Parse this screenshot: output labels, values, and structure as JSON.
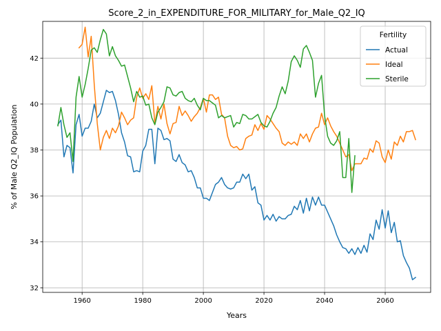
{
  "chart_data": {
    "type": "line",
    "title": "Score_2_in_EXPENDITURE_FOR_MILITARY_for_Male_Q2_IQ",
    "xlabel": "Years",
    "ylabel": "% of Male Q2_IQ Population",
    "xlim": [
      1947,
      2075
    ],
    "ylim": [
      31.8,
      43.6
    ],
    "xticks": [
      1960,
      1980,
      2000,
      2020,
      2040,
      2060
    ],
    "yticks": [
      32,
      34,
      36,
      38,
      40,
      42
    ],
    "grid": true,
    "legend": {
      "title": "Fertility",
      "placement": "top-right"
    },
    "series": [
      {
        "name": "Actual",
        "color": "#1f77b4",
        "x": [
          1952,
          1953,
          1954,
          1955,
          1956,
          1957,
          1958,
          1959,
          1960,
          1961,
          1962,
          1963,
          1964,
          1965,
          1966,
          1967,
          1968,
          1969,
          1970,
          1971,
          1972,
          1973,
          1974,
          1975,
          1976,
          1977,
          1978,
          1979,
          1980,
          1981,
          1982,
          1983,
          1984,
          1985,
          1986,
          1987,
          1988,
          1989,
          1990,
          1991,
          1992,
          1993,
          1994,
          1995,
          1996,
          1997,
          1998,
          1999,
          2000,
          2001,
          2002,
          2003,
          2004,
          2005,
          2006,
          2007,
          2008,
          2009,
          2010,
          2011,
          2012,
          2013,
          2014,
          2015,
          2016,
          2017,
          2018,
          2019,
          2020,
          2021,
          2022,
          2023,
          2024,
          2025,
          2026,
          2027,
          2028,
          2029,
          2030,
          2031,
          2032,
          2033,
          2034,
          2035,
          2036,
          2037,
          2038,
          2039,
          2040,
          2041,
          2042,
          2043,
          2044,
          2045,
          2046,
          2047,
          2048,
          2049,
          2050,
          2051,
          2052,
          2053,
          2054,
          2055,
          2056,
          2057,
          2058,
          2059,
          2060,
          2061,
          2062,
          2063,
          2064,
          2065,
          2066,
          2067,
          2068,
          2069,
          2070
        ],
        "values": [
          39.1,
          39.3,
          37.7,
          38.2,
          38.1,
          37.0,
          39.1,
          39.55,
          38.6,
          38.95,
          38.95,
          39.25,
          40.0,
          39.4,
          39.6,
          40.1,
          40.6,
          40.5,
          40.55,
          40.15,
          39.55,
          38.75,
          38.35,
          37.75,
          37.7,
          37.05,
          37.1,
          37.05,
          37.95,
          38.2,
          38.9,
          38.9,
          37.4,
          38.95,
          38.85,
          38.45,
          38.5,
          38.4,
          37.6,
          37.5,
          37.8,
          37.45,
          37.35,
          37.05,
          37.1,
          36.8,
          36.35,
          36.35,
          35.9,
          35.9,
          35.8,
          36.15,
          36.5,
          36.6,
          36.8,
          36.5,
          36.35,
          36.3,
          36.35,
          36.6,
          36.6,
          36.95,
          36.75,
          36.95,
          36.25,
          36.4,
          35.7,
          35.6,
          34.95,
          35.15,
          34.95,
          35.2,
          34.9,
          35.1,
          35.0,
          35.0,
          35.15,
          35.2,
          35.55,
          35.4,
          35.8,
          35.25,
          35.9,
          35.35,
          35.95,
          35.6,
          35.95,
          35.6,
          35.6,
          35.3,
          35.0,
          34.7,
          34.3,
          34.0,
          33.75,
          33.7,
          33.5,
          33.7,
          33.45,
          33.75,
          33.5,
          33.85,
          33.55,
          34.35,
          34.1,
          34.95,
          34.55,
          35.4,
          34.6,
          35.35,
          34.4,
          34.85,
          34.0,
          34.05,
          33.4,
          33.1,
          32.85,
          32.35,
          32.45
        ]
      },
      {
        "name": "Ideal",
        "color": "#ff7f0e",
        "x": [
          1959,
          1960,
          1961,
          1962,
          1963,
          1964,
          1965,
          1966,
          1967,
          1968,
          1969,
          1970,
          1971,
          1972,
          1973,
          1974,
          1975,
          1976,
          1977,
          1978,
          1979,
          1980,
          1981,
          1982,
          1983,
          1984,
          1985,
          1986,
          1987,
          1988,
          1989,
          1990,
          1991,
          1992,
          1993,
          1994,
          1995,
          1996,
          1997,
          1998,
          1999,
          2000,
          2001,
          2002,
          2003,
          2004,
          2005,
          2006,
          2007,
          2008,
          2009,
          2010,
          2011,
          2012,
          2013,
          2014,
          2015,
          2016,
          2017,
          2018,
          2019,
          2020,
          2021,
          2022,
          2023,
          2024,
          2025,
          2026,
          2027,
          2028,
          2029,
          2030,
          2031,
          2032,
          2033,
          2034,
          2035,
          2036,
          2037,
          2038,
          2039,
          2040,
          2041,
          2042,
          2043,
          2044,
          2045,
          2046,
          2047,
          2048,
          2049,
          2050,
          2051,
          2052,
          2053,
          2054,
          2055,
          2056,
          2057,
          2058,
          2059,
          2060,
          2061,
          2062,
          2063,
          2064,
          2065,
          2066,
          2067,
          2068,
          2069,
          2070
        ],
        "values": [
          42.45,
          42.6,
          43.35,
          42.05,
          42.95,
          40.85,
          39.15,
          38.0,
          38.55,
          38.85,
          38.5,
          38.95,
          38.75,
          39.05,
          39.65,
          39.4,
          39.1,
          39.3,
          39.4,
          40.3,
          40.7,
          40.25,
          40.45,
          40.2,
          40.8,
          39.15,
          39.9,
          39.35,
          40.0,
          39.15,
          38.7,
          39.15,
          39.2,
          39.9,
          39.5,
          39.7,
          39.5,
          39.25,
          39.45,
          39.6,
          39.85,
          40.25,
          39.65,
          40.4,
          40.4,
          40.2,
          40.3,
          39.55,
          39.4,
          38.6,
          38.2,
          38.1,
          38.15,
          38.0,
          38.05,
          38.5,
          38.6,
          38.65,
          39.1,
          38.85,
          39.15,
          38.9,
          39.5,
          39.35,
          39.15,
          38.95,
          38.8,
          38.3,
          38.2,
          38.35,
          38.25,
          38.35,
          38.2,
          38.7,
          38.5,
          38.7,
          38.35,
          38.7,
          38.95,
          39.0,
          39.6,
          39.1,
          39.4,
          39.05,
          38.8,
          38.6,
          38.3,
          38.0,
          37.7,
          37.8,
          37.1,
          37.4,
          37.4,
          37.4,
          37.65,
          37.6,
          38.05,
          37.9,
          38.4,
          38.3,
          37.7,
          37.45,
          38.0,
          37.6,
          38.35,
          38.2,
          38.6,
          38.35,
          38.8,
          38.8,
          38.85,
          38.45
        ]
      },
      {
        "name": "Sterile",
        "color": "#2ca02c",
        "x": [
          1952,
          1953,
          1954,
          1955,
          1956,
          1957,
          1958,
          1959,
          1960,
          1961,
          1962,
          1963,
          1964,
          1965,
          1966,
          1967,
          1968,
          1969,
          1970,
          1971,
          1972,
          1973,
          1974,
          1975,
          1976,
          1977,
          1978,
          1979,
          1980,
          1981,
          1982,
          1983,
          1984,
          1985,
          1986,
          1987,
          1988,
          1989,
          1990,
          1991,
          1992,
          1993,
          1994,
          1995,
          1996,
          1997,
          1998,
          1999,
          2000,
          2001,
          2002,
          2003,
          2004,
          2005,
          2006,
          2007,
          2008,
          2009,
          2010,
          2011,
          2012,
          2013,
          2014,
          2015,
          2016,
          2017,
          2018,
          2019,
          2020,
          2021,
          2022,
          2023,
          2024,
          2025,
          2026,
          2027,
          2028,
          2029,
          2030,
          2031,
          2032,
          2033,
          2034,
          2035,
          2036,
          2037,
          2038,
          2039,
          2040,
          2041,
          2042,
          2043,
          2044,
          2045,
          2046,
          2047,
          2048,
          2049,
          2050
        ],
        "values": [
          39.05,
          39.85,
          39.1,
          38.55,
          38.75,
          37.5,
          40.3,
          41.2,
          40.3,
          40.85,
          41.55,
          42.35,
          42.45,
          42.25,
          42.8,
          43.25,
          43.05,
          42.1,
          42.5,
          42.1,
          41.9,
          41.65,
          41.7,
          41.2,
          40.7,
          40.1,
          40.55,
          40.3,
          40.35,
          39.95,
          40.0,
          39.4,
          39.1,
          39.65,
          39.85,
          40.1,
          40.75,
          40.7,
          40.4,
          40.35,
          40.5,
          40.55,
          40.25,
          40.15,
          40.1,
          40.25,
          39.95,
          39.75,
          40.25,
          40.15,
          40.15,
          40.05,
          39.95,
          39.4,
          39.5,
          39.4,
          39.45,
          39.5,
          39.0,
          39.2,
          39.15,
          39.55,
          39.5,
          39.35,
          39.35,
          39.45,
          39.55,
          39.2,
          39.05,
          39.0,
          39.25,
          39.6,
          39.85,
          40.35,
          40.75,
          40.45,
          41.0,
          41.85,
          42.1,
          41.9,
          41.6,
          42.4,
          42.55,
          42.25,
          41.9,
          40.3,
          40.9,
          41.25,
          39.5,
          38.6,
          38.3,
          38.2,
          38.4,
          38.8,
          36.8,
          36.8,
          38.5,
          36.15,
          37.75
        ]
      }
    ]
  }
}
